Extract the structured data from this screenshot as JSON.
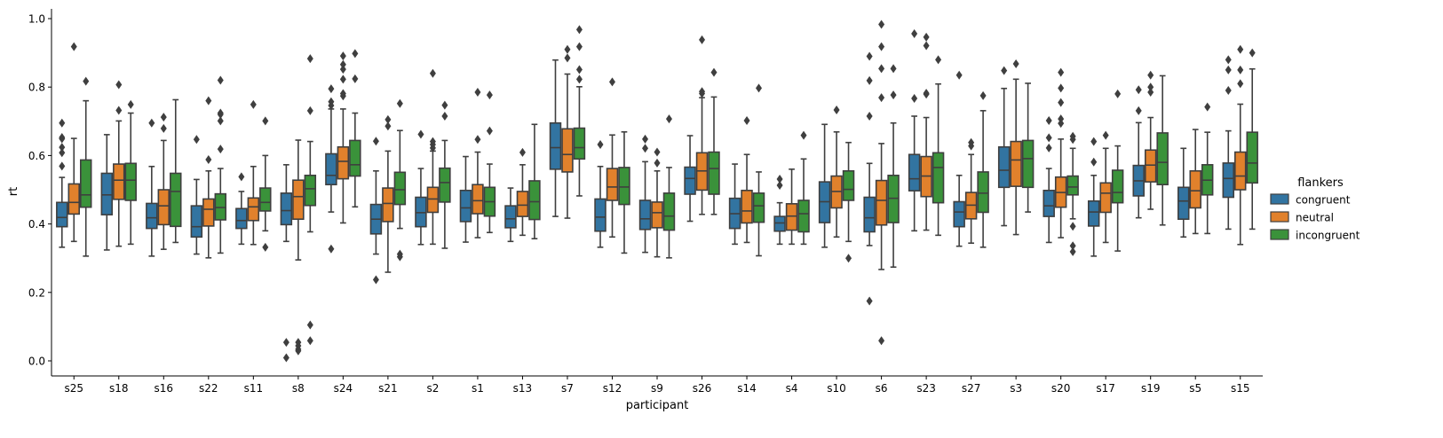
{
  "chart_data": {
    "type": "box",
    "xlabel": "participant",
    "ylabel": "rt",
    "ylim": [
      -0.04,
      1.03
    ],
    "yticks": [
      "0.0",
      "0.2",
      "0.4",
      "0.6",
      "0.8",
      "1.0"
    ],
    "grid": false,
    "legend": {
      "title": "flankers",
      "placement": "right"
    },
    "categories": [
      "s25",
      "s18",
      "s16",
      "s22",
      "s11",
      "s8",
      "s24",
      "s21",
      "s2",
      "s1",
      "s13",
      "s7",
      "s12",
      "s9",
      "s26",
      "s14",
      "s4",
      "s10",
      "s6",
      "s23",
      "s27",
      "s3",
      "s20",
      "s17",
      "s19",
      "s5",
      "s15"
    ],
    "box_format": [
      "whisker_low",
      "q1",
      "median",
      "q3",
      "whisker_high"
    ],
    "series": [
      {
        "name": "congruent",
        "color": "#3274a1",
        "boxes": [
          [
            0.332,
            0.392,
            0.419,
            0.463,
            0.536
          ],
          [
            0.324,
            0.427,
            0.485,
            0.548,
            0.661
          ],
          [
            0.306,
            0.387,
            0.418,
            0.46,
            0.568
          ],
          [
            0.312,
            0.362,
            0.392,
            0.453,
            0.53
          ],
          [
            0.341,
            0.387,
            0.41,
            0.445,
            0.495
          ],
          [
            0.349,
            0.398,
            0.439,
            0.49,
            0.573
          ],
          [
            0.435,
            0.515,
            0.542,
            0.605,
            0.736
          ],
          [
            0.312,
            0.371,
            0.414,
            0.457,
            0.555
          ],
          [
            0.34,
            0.392,
            0.433,
            0.478,
            0.562
          ],
          [
            0.347,
            0.407,
            0.447,
            0.498,
            0.597
          ],
          [
            0.349,
            0.389,
            0.415,
            0.453,
            0.505
          ],
          [
            0.422,
            0.56,
            0.623,
            0.695,
            0.879
          ],
          [
            0.332,
            0.379,
            0.42,
            0.473,
            0.568
          ],
          [
            0.317,
            0.384,
            0.415,
            0.469,
            0.582
          ],
          [
            0.408,
            0.487,
            0.533,
            0.566,
            0.658
          ],
          [
            0.341,
            0.387,
            0.43,
            0.475,
            0.575
          ],
          [
            0.341,
            0.379,
            0.403,
            0.422,
            0.462
          ],
          [
            0.332,
            0.404,
            0.465,
            0.523,
            0.691
          ],
          [
            0.337,
            0.377,
            0.418,
            0.478,
            0.577
          ],
          [
            0.38,
            0.497,
            0.532,
            0.603,
            0.715
          ],
          [
            0.335,
            0.392,
            0.435,
            0.465,
            0.542
          ],
          [
            0.395,
            0.507,
            0.557,
            0.625,
            0.796
          ],
          [
            0.346,
            0.422,
            0.453,
            0.498,
            0.562
          ],
          [
            0.306,
            0.394,
            0.435,
            0.467,
            0.542
          ],
          [
            0.418,
            0.482,
            0.526,
            0.571,
            0.696
          ],
          [
            0.362,
            0.414,
            0.467,
            0.507,
            0.621
          ],
          [
            0.385,
            0.478,
            0.533,
            0.578,
            0.672
          ]
        ],
        "fliers": [
          [
            0.695,
            0.653,
            0.649,
            0.624,
            0.608,
            0.569
          ],
          [],
          [
            0.695
          ],
          [
            0.647
          ],
          [
            0.538
          ],
          [
            0.054,
            0.009
          ],
          [
            0.327,
            0.746,
            0.757,
            0.795
          ],
          [
            0.642,
            0.237
          ],
          [
            0.662
          ],
          [],
          [],
          [],
          [
            0.632
          ],
          [
            0.648,
            0.621
          ],
          [],
          [],
          [
            0.531,
            0.513
          ],
          [],
          [
            0.89,
            0.819,
            0.715,
            0.175
          ],
          [
            0.956,
            0.767
          ],
          [
            0.835
          ],
          [
            0.848
          ],
          [
            0.702,
            0.652,
            0.622
          ],
          [
            0.641,
            0.581
          ],
          [
            0.792,
            0.731
          ],
          [],
          [
            0.79,
            0.85,
            0.88
          ]
        ]
      },
      {
        "name": "neutral",
        "color": "#e1812c",
        "boxes": [
          [
            0.349,
            0.429,
            0.463,
            0.517,
            0.65
          ],
          [
            0.335,
            0.472,
            0.528,
            0.575,
            0.701
          ],
          [
            0.326,
            0.398,
            0.453,
            0.5,
            0.644
          ],
          [
            0.301,
            0.394,
            0.443,
            0.473,
            0.555
          ],
          [
            0.34,
            0.41,
            0.45,
            0.476,
            0.568
          ],
          [
            0.295,
            0.414,
            0.48,
            0.528,
            0.645
          ],
          [
            0.403,
            0.532,
            0.583,
            0.625,
            0.736
          ],
          [
            0.259,
            0.407,
            0.46,
            0.505,
            0.613
          ],
          [
            0.341,
            0.434,
            0.473,
            0.507,
            0.613
          ],
          [
            0.36,
            0.43,
            0.468,
            0.515,
            0.61
          ],
          [
            0.367,
            0.422,
            0.455,
            0.495,
            0.573
          ],
          [
            0.417,
            0.552,
            0.603,
            0.678,
            0.838
          ],
          [
            0.362,
            0.469,
            0.508,
            0.562,
            0.66
          ],
          [
            0.304,
            0.389,
            0.433,
            0.464,
            0.555
          ],
          [
            0.428,
            0.499,
            0.555,
            0.608,
            0.769
          ],
          [
            0.346,
            0.403,
            0.438,
            0.498,
            0.603
          ],
          [
            0.341,
            0.382,
            0.423,
            0.459,
            0.56
          ],
          [
            0.362,
            0.447,
            0.495,
            0.54,
            0.669
          ],
          [
            0.267,
            0.397,
            0.469,
            0.527,
            0.635
          ],
          [
            0.382,
            0.48,
            0.54,
            0.597,
            0.711
          ],
          [
            0.344,
            0.415,
            0.455,
            0.492,
            0.603
          ],
          [
            0.369,
            0.51,
            0.587,
            0.641,
            0.823
          ],
          [
            0.36,
            0.449,
            0.492,
            0.537,
            0.648
          ],
          [
            0.346,
            0.434,
            0.49,
            0.52,
            0.621
          ],
          [
            0.443,
            0.523,
            0.572,
            0.616,
            0.711
          ],
          [
            0.372,
            0.447,
            0.497,
            0.555,
            0.676
          ],
          [
            0.34,
            0.5,
            0.54,
            0.61,
            0.75
          ]
        ],
        "fliers": [
          [
            0.918
          ],
          [
            0.732,
            0.807
          ],
          [
            0.712,
            0.679
          ],
          [
            0.76,
            0.588
          ],
          [
            0.749
          ],
          [
            0.054,
            0.044,
            0.034,
            0.029
          ],
          [
            0.891,
            0.866,
            0.852,
            0.823,
            0.781,
            0.774
          ],
          [
            0.705,
            0.686
          ],
          [
            0.84,
            0.641,
            0.632,
            0.622
          ],
          [
            0.785,
            0.647
          ],
          [
            0.609
          ],
          [
            0.91,
            0.885
          ],
          [
            0.815
          ],
          [
            0.61,
            0.578
          ],
          [
            0.938,
            0.787,
            0.781
          ],
          [
            0.702
          ],
          [],
          [
            0.733
          ],
          [
            0.983,
            0.918,
            0.854,
            0.769,
            0.059
          ],
          [
            0.946,
            0.921,
            0.782,
            0.779
          ],
          [
            0.638,
            0.628
          ],
          [
            0.868
          ],
          [
            0.843,
            0.797,
            0.755,
            0.707,
            0.694
          ],
          [
            0.659
          ],
          [
            0.835,
            0.8,
            0.785
          ],
          [],
          [
            0.81,
            0.85,
            0.91
          ]
        ]
      },
      {
        "name": "incongruent",
        "color": "#3a923a",
        "boxes": [
          [
            0.306,
            0.449,
            0.485,
            0.587,
            0.76
          ],
          [
            0.341,
            0.469,
            0.528,
            0.577,
            0.724
          ],
          [
            0.346,
            0.393,
            0.495,
            0.548,
            0.763
          ],
          [
            0.315,
            0.412,
            0.448,
            0.488,
            0.562
          ],
          [
            0.38,
            0.438,
            0.463,
            0.505,
            0.6
          ],
          [
            0.377,
            0.454,
            0.503,
            0.542,
            0.641
          ],
          [
            0.45,
            0.54,
            0.573,
            0.644,
            0.724
          ],
          [
            0.387,
            0.457,
            0.5,
            0.551,
            0.673
          ],
          [
            0.329,
            0.464,
            0.521,
            0.563,
            0.644
          ],
          [
            0.375,
            0.423,
            0.465,
            0.507,
            0.575
          ],
          [
            0.357,
            0.413,
            0.465,
            0.526,
            0.691
          ],
          [
            0.482,
            0.59,
            0.623,
            0.68,
            0.801
          ],
          [
            0.315,
            0.457,
            0.508,
            0.565,
            0.669
          ],
          [
            0.301,
            0.382,
            0.423,
            0.49,
            0.565
          ],
          [
            0.428,
            0.487,
            0.562,
            0.61,
            0.771
          ],
          [
            0.307,
            0.405,
            0.453,
            0.49,
            0.552
          ],
          [
            0.341,
            0.377,
            0.43,
            0.469,
            0.59
          ],
          [
            0.349,
            0.469,
            0.501,
            0.555,
            0.638
          ],
          [
            0.274,
            0.404,
            0.475,
            0.542,
            0.695
          ],
          [
            0.367,
            0.462,
            0.565,
            0.608,
            0.809
          ],
          [
            0.332,
            0.434,
            0.49,
            0.552,
            0.731
          ],
          [
            0.435,
            0.507,
            0.591,
            0.644,
            0.811
          ],
          [
            0.415,
            0.485,
            0.508,
            0.54,
            0.621
          ],
          [
            0.321,
            0.462,
            0.492,
            0.557,
            0.628
          ],
          [
            0.397,
            0.515,
            0.58,
            0.666,
            0.833
          ],
          [
            0.372,
            0.485,
            0.528,
            0.573,
            0.668
          ],
          [
            0.385,
            0.52,
            0.578,
            0.668,
            0.853
          ]
        ],
        "fliers": [
          [
            0.817
          ],
          [
            0.749
          ],
          [],
          [
            0.82,
            0.724,
            0.72,
            0.701,
            0.619
          ],
          [
            0.701,
            0.332
          ],
          [
            0.883,
            0.731,
            0.105,
            0.059
          ],
          [
            0.898,
            0.824
          ],
          [
            0.752,
            0.312,
            0.304
          ],
          [
            0.747,
            0.715
          ],
          [
            0.777,
            0.672
          ],
          [],
          [
            0.968,
            0.918,
            0.851,
            0.823
          ],
          [],
          [
            0.707
          ],
          [
            0.843
          ],
          [
            0.797
          ],
          [
            0.659
          ],
          [
            0.3
          ],
          [
            0.854,
            0.777
          ],
          [
            0.88
          ],
          [
            0.775
          ],
          [],
          [
            0.656,
            0.647,
            0.393,
            0.336,
            0.319
          ],
          [
            0.78
          ],
          [],
          [
            0.742
          ],
          [
            0.9
          ]
        ]
      }
    ]
  }
}
